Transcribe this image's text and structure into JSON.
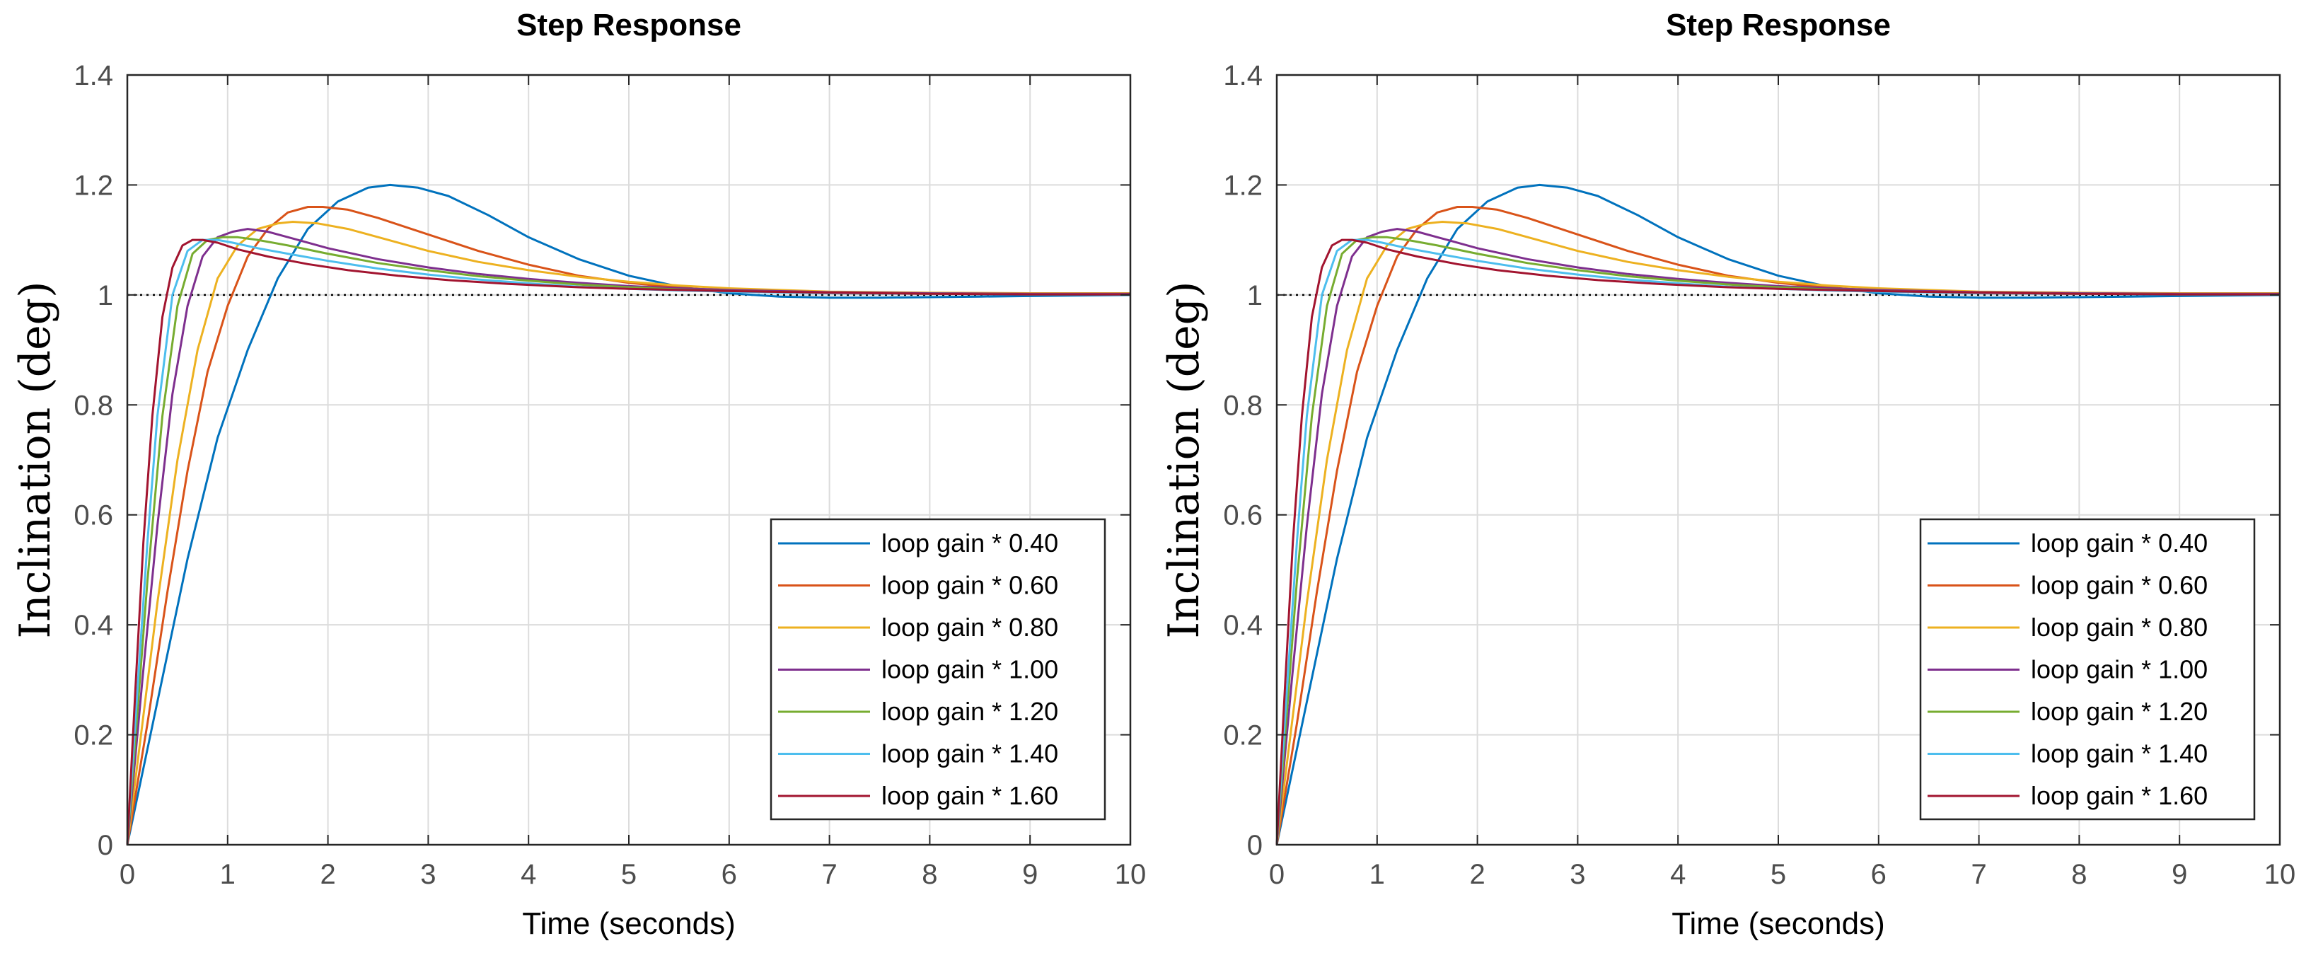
{
  "chart_data": [
    {
      "type": "line",
      "title": "Step Response",
      "xlabel": "Time (seconds)",
      "ylabel": "Inclination (deg)",
      "xlim": [
        0,
        10
      ],
      "ylim": [
        0,
        1.4
      ],
      "xticks": [
        0,
        1,
        2,
        3,
        4,
        5,
        6,
        7,
        8,
        9,
        10
      ],
      "yticks": [
        0,
        0.2,
        0.4,
        0.6,
        0.8,
        1,
        1.2,
        1.4
      ],
      "ytick_labels": [
        "0",
        "0.2",
        "0.4",
        "0.6",
        "0.8",
        "1",
        "1.2",
        "1.4"
      ],
      "grid": true,
      "reference_line": {
        "y": 1,
        "style": "dotted",
        "color": "#000000"
      },
      "legend_position": "bottom-right",
      "series": [
        {
          "name": "loop gain * 0.40",
          "color": "#0072BD",
          "x": [
            0,
            0.3,
            0.6,
            0.9,
            1.2,
            1.5,
            1.8,
            2.1,
            2.4,
            2.62,
            2.9,
            3.2,
            3.6,
            4.0,
            4.5,
            5.0,
            5.5,
            6.0,
            6.5,
            7.0,
            7.5,
            8.0,
            8.5,
            9.0,
            9.5,
            10
          ],
          "y": [
            0,
            0.26,
            0.52,
            0.74,
            0.9,
            1.03,
            1.12,
            1.17,
            1.195,
            1.2,
            1.195,
            1.18,
            1.145,
            1.105,
            1.065,
            1.035,
            1.015,
            1.003,
            0.997,
            0.995,
            0.995,
            0.996,
            0.997,
            0.998,
            0.999,
            1.0
          ]
        },
        {
          "name": "loop gain * 0.60",
          "color": "#D95319",
          "x": [
            0,
            0.2,
            0.4,
            0.6,
            0.8,
            1.0,
            1.2,
            1.4,
            1.6,
            1.8,
            1.95,
            2.2,
            2.5,
            3.0,
            3.5,
            4.0,
            4.5,
            5.0,
            5.5,
            6.0,
            7.0,
            8.0,
            9.0,
            10
          ],
          "y": [
            0,
            0.22,
            0.46,
            0.68,
            0.86,
            0.98,
            1.07,
            1.12,
            1.15,
            1.16,
            1.16,
            1.155,
            1.14,
            1.11,
            1.08,
            1.055,
            1.035,
            1.022,
            1.013,
            1.008,
            1.003,
            1.002,
            1.002,
            1.002
          ]
        },
        {
          "name": "loop gain * 0.80",
          "color": "#EDB120",
          "x": [
            0,
            0.15,
            0.3,
            0.5,
            0.7,
            0.9,
            1.1,
            1.3,
            1.5,
            1.65,
            1.9,
            2.2,
            2.6,
            3.0,
            3.5,
            4.0,
            4.5,
            5.0,
            5.5,
            6.0,
            7.0,
            8.0,
            9.0,
            10
          ],
          "y": [
            0,
            0.22,
            0.44,
            0.7,
            0.9,
            1.03,
            1.09,
            1.12,
            1.13,
            1.133,
            1.13,
            1.12,
            1.1,
            1.08,
            1.06,
            1.045,
            1.033,
            1.024,
            1.017,
            1.012,
            1.006,
            1.004,
            1.003,
            1.003
          ]
        },
        {
          "name": "loop gain * 1.00",
          "color": "#7E2F8E",
          "x": [
            0,
            0.15,
            0.3,
            0.45,
            0.6,
            0.75,
            0.9,
            1.05,
            1.2,
            1.4,
            1.7,
            2.0,
            2.5,
            3.0,
            3.5,
            4.0,
            4.5,
            5.0,
            5.5,
            6.0,
            7.0,
            8.0,
            9.0,
            10
          ],
          "y": [
            0,
            0.3,
            0.58,
            0.82,
            0.98,
            1.07,
            1.105,
            1.115,
            1.12,
            1.115,
            1.1,
            1.085,
            1.065,
            1.05,
            1.038,
            1.029,
            1.022,
            1.016,
            1.012,
            1.009,
            1.005,
            1.003,
            1.002,
            1.002
          ]
        },
        {
          "name": "loop gain * 1.20",
          "color": "#77AC30",
          "x": [
            0,
            0.1,
            0.2,
            0.35,
            0.5,
            0.65,
            0.8,
            0.95,
            1.1,
            1.3,
            1.6,
            2.0,
            2.5,
            3.0,
            3.5,
            4.0,
            4.5,
            5.0,
            5.5,
            6.0,
            7.0,
            8.0,
            9.0,
            10
          ],
          "y": [
            0,
            0.24,
            0.48,
            0.78,
            0.98,
            1.075,
            1.1,
            1.105,
            1.105,
            1.1,
            1.09,
            1.075,
            1.058,
            1.045,
            1.034,
            1.026,
            1.019,
            1.014,
            1.01,
            1.007,
            1.004,
            1.002,
            1.001,
            1.001
          ]
        },
        {
          "name": "loop gain * 1.40",
          "color": "#4DBEEE",
          "x": [
            0,
            0.1,
            0.2,
            0.3,
            0.45,
            0.6,
            0.75,
            0.9,
            1.05,
            1.3,
            1.6,
            2.0,
            2.5,
            3.0,
            3.5,
            4.0,
            4.5,
            5.0,
            5.5,
            6.0,
            7.0,
            8.0,
            9.0,
            10
          ],
          "y": [
            0,
            0.28,
            0.55,
            0.78,
            1.0,
            1.08,
            1.1,
            1.1,
            1.095,
            1.085,
            1.075,
            1.062,
            1.048,
            1.037,
            1.028,
            1.021,
            1.015,
            1.011,
            1.008,
            1.006,
            1.003,
            1.002,
            1.001,
            1.001
          ]
        },
        {
          "name": "loop gain * 1.60",
          "color": "#A2142F",
          "x": [
            0,
            0.08,
            0.16,
            0.25,
            0.35,
            0.45,
            0.55,
            0.65,
            0.75,
            0.9,
            1.1,
            1.4,
            1.8,
            2.2,
            2.7,
            3.2,
            3.8,
            4.5,
            5.0,
            6.0,
            7.0,
            8.0,
            9.0,
            10
          ],
          "y": [
            0,
            0.28,
            0.55,
            0.78,
            0.96,
            1.05,
            1.09,
            1.1,
            1.1,
            1.095,
            1.083,
            1.07,
            1.056,
            1.045,
            1.035,
            1.027,
            1.02,
            1.014,
            1.011,
            1.007,
            1.004,
            1.002,
            1.001,
            1.001
          ]
        }
      ]
    },
    {
      "type": "line",
      "title": "Step Response",
      "xlabel": "Time (seconds)",
      "ylabel": "Inclination (deg)",
      "xlim": [
        0,
        10
      ],
      "ylim": [
        0,
        1.4
      ],
      "xticks": [
        0,
        1,
        2,
        3,
        4,
        5,
        6,
        7,
        8,
        9,
        10
      ],
      "yticks": [
        0,
        0.2,
        0.4,
        0.6,
        0.8,
        1,
        1.2,
        1.4
      ],
      "ytick_labels": [
        "0",
        "0.2",
        "0.4",
        "0.6",
        "0.8",
        "1",
        "1.2",
        "1.4"
      ],
      "grid": true,
      "reference_line": {
        "y": 1,
        "style": "dotted",
        "color": "#000000"
      },
      "legend_position": "bottom-right",
      "series": [
        {
          "name": "loop gain * 0.40",
          "color": "#0072BD",
          "x": [
            0,
            0.3,
            0.6,
            0.9,
            1.2,
            1.5,
            1.8,
            2.1,
            2.4,
            2.62,
            2.9,
            3.2,
            3.6,
            4.0,
            4.5,
            5.0,
            5.5,
            6.0,
            6.5,
            7.0,
            7.5,
            8.0,
            8.5,
            9.0,
            9.5,
            10
          ],
          "y": [
            0,
            0.26,
            0.52,
            0.74,
            0.9,
            1.03,
            1.12,
            1.17,
            1.195,
            1.2,
            1.195,
            1.18,
            1.145,
            1.105,
            1.065,
            1.035,
            1.015,
            1.003,
            0.997,
            0.995,
            0.995,
            0.996,
            0.997,
            0.998,
            0.999,
            1.0
          ]
        },
        {
          "name": "loop gain * 0.60",
          "color": "#D95319",
          "x": [
            0,
            0.2,
            0.4,
            0.6,
            0.8,
            1.0,
            1.2,
            1.4,
            1.6,
            1.8,
            1.95,
            2.2,
            2.5,
            3.0,
            3.5,
            4.0,
            4.5,
            5.0,
            5.5,
            6.0,
            7.0,
            8.0,
            9.0,
            10
          ],
          "y": [
            0,
            0.22,
            0.46,
            0.68,
            0.86,
            0.98,
            1.07,
            1.12,
            1.15,
            1.16,
            1.16,
            1.155,
            1.14,
            1.11,
            1.08,
            1.055,
            1.035,
            1.022,
            1.013,
            1.008,
            1.003,
            1.002,
            1.002,
            1.002
          ]
        },
        {
          "name": "loop gain * 0.80",
          "color": "#EDB120",
          "x": [
            0,
            0.15,
            0.3,
            0.5,
            0.7,
            0.9,
            1.1,
            1.3,
            1.5,
            1.65,
            1.9,
            2.2,
            2.6,
            3.0,
            3.5,
            4.0,
            4.5,
            5.0,
            5.5,
            6.0,
            7.0,
            8.0,
            9.0,
            10
          ],
          "y": [
            0,
            0.22,
            0.44,
            0.7,
            0.9,
            1.03,
            1.09,
            1.12,
            1.13,
            1.133,
            1.13,
            1.12,
            1.1,
            1.08,
            1.06,
            1.045,
            1.033,
            1.024,
            1.017,
            1.012,
            1.006,
            1.004,
            1.003,
            1.003
          ]
        },
        {
          "name": "loop gain * 1.00",
          "color": "#7E2F8E",
          "x": [
            0,
            0.15,
            0.3,
            0.45,
            0.6,
            0.75,
            0.9,
            1.05,
            1.2,
            1.4,
            1.7,
            2.0,
            2.5,
            3.0,
            3.5,
            4.0,
            4.5,
            5.0,
            5.5,
            6.0,
            7.0,
            8.0,
            9.0,
            10
          ],
          "y": [
            0,
            0.3,
            0.58,
            0.82,
            0.98,
            1.07,
            1.105,
            1.115,
            1.12,
            1.115,
            1.1,
            1.085,
            1.065,
            1.05,
            1.038,
            1.029,
            1.022,
            1.016,
            1.012,
            1.009,
            1.005,
            1.003,
            1.002,
            1.002
          ]
        },
        {
          "name": "loop gain * 1.20",
          "color": "#77AC30",
          "x": [
            0,
            0.1,
            0.2,
            0.35,
            0.5,
            0.65,
            0.8,
            0.95,
            1.1,
            1.3,
            1.6,
            2.0,
            2.5,
            3.0,
            3.5,
            4.0,
            4.5,
            5.0,
            5.5,
            6.0,
            7.0,
            8.0,
            9.0,
            10
          ],
          "y": [
            0,
            0.24,
            0.48,
            0.78,
            0.98,
            1.075,
            1.1,
            1.105,
            1.105,
            1.1,
            1.09,
            1.075,
            1.058,
            1.045,
            1.034,
            1.026,
            1.019,
            1.014,
            1.01,
            1.007,
            1.004,
            1.002,
            1.001,
            1.001
          ]
        },
        {
          "name": "loop gain * 1.40",
          "color": "#4DBEEE",
          "x": [
            0,
            0.1,
            0.2,
            0.3,
            0.45,
            0.6,
            0.75,
            0.9,
            1.05,
            1.3,
            1.6,
            2.0,
            2.5,
            3.0,
            3.5,
            4.0,
            4.5,
            5.0,
            5.5,
            6.0,
            7.0,
            8.0,
            9.0,
            10
          ],
          "y": [
            0,
            0.28,
            0.55,
            0.78,
            1.0,
            1.08,
            1.1,
            1.1,
            1.095,
            1.085,
            1.075,
            1.062,
            1.048,
            1.037,
            1.028,
            1.021,
            1.015,
            1.011,
            1.008,
            1.006,
            1.003,
            1.002,
            1.001,
            1.001
          ]
        },
        {
          "name": "loop gain * 1.60",
          "color": "#A2142F",
          "x": [
            0,
            0.08,
            0.16,
            0.25,
            0.35,
            0.45,
            0.55,
            0.65,
            0.75,
            0.9,
            1.1,
            1.4,
            1.8,
            2.2,
            2.7,
            3.2,
            3.8,
            4.5,
            5.0,
            6.0,
            7.0,
            8.0,
            9.0,
            10
          ],
          "y": [
            0,
            0.28,
            0.55,
            0.78,
            0.96,
            1.05,
            1.09,
            1.1,
            1.1,
            1.095,
            1.083,
            1.07,
            1.056,
            1.045,
            1.035,
            1.027,
            1.02,
            1.014,
            1.011,
            1.007,
            1.004,
            1.002,
            1.001,
            1.001
          ]
        }
      ]
    }
  ],
  "colors": {
    "grid": "#dcdcdc",
    "axes": "#262626",
    "tick_text": "#4d4d4d"
  }
}
